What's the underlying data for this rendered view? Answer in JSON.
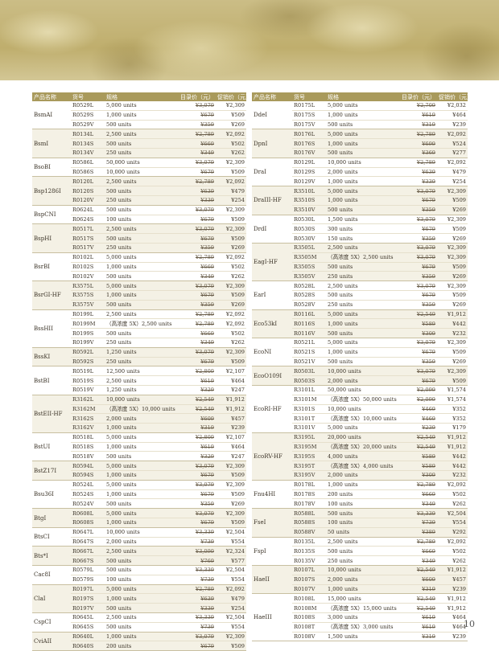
{
  "header": {
    "name": "产品名称",
    "code": "货号",
    "spec": "规格",
    "list_price": "目录价（元）",
    "promo_price": "促销价（元）"
  },
  "page_number": "10",
  "colors": {
    "header_bg": "#a99a5c",
    "alt_row_bg": "#f4f1e5",
    "banner": "#c2b273"
  },
  "left_groups": [
    {
      "name": "BsmAI",
      "rows": [
        [
          "R0529L",
          "5,000 units",
          "¥3,079",
          "¥2,309"
        ],
        [
          "R0529S",
          "1,000 units",
          "¥679",
          "¥509"
        ],
        [
          "R0529V",
          "500 units",
          "¥359",
          "¥269"
        ]
      ]
    },
    {
      "name": "BsmI",
      "rows": [
        [
          "R0134L",
          "2,500 units",
          "¥2,789",
          "¥2,092"
        ],
        [
          "R0134S",
          "500 units",
          "¥669",
          "¥502"
        ],
        [
          "R0134V",
          "250 units",
          "¥349",
          "¥262"
        ]
      ]
    },
    {
      "name": "BsoBI",
      "rows": [
        [
          "R0586L",
          "50,000 units",
          "¥3,079",
          "¥2,309"
        ],
        [
          "R0586S",
          "10,000 units",
          "¥679",
          "¥509"
        ]
      ]
    },
    {
      "name": "Bsp1286I",
      "rows": [
        [
          "R0120L",
          "2,500 units",
          "¥2,789",
          "¥2,092"
        ],
        [
          "R0120S",
          "500 units",
          "¥639",
          "¥479"
        ],
        [
          "R0120V",
          "250 units",
          "¥339",
          "¥254"
        ]
      ]
    },
    {
      "name": "BspCNI",
      "rows": [
        [
          "R0624L",
          "500 units",
          "¥3,079",
          "¥2,309"
        ],
        [
          "R0624S",
          "100 units",
          "¥679",
          "¥509"
        ]
      ]
    },
    {
      "name": "BspHI",
      "rows": [
        [
          "R0517L",
          "2,500 units",
          "¥3,079",
          "¥2,309"
        ],
        [
          "R0517S",
          "500 units",
          "¥679",
          "¥509"
        ],
        [
          "R0517V",
          "250 units",
          "¥359",
          "¥269"
        ]
      ]
    },
    {
      "name": "BsrBI",
      "rows": [
        [
          "R0102L",
          "5,000 units",
          "¥2,789",
          "¥2,092"
        ],
        [
          "R0102S",
          "1,000 units",
          "¥669",
          "¥502"
        ],
        [
          "R0102V",
          "500 units",
          "¥349",
          "¥262"
        ]
      ]
    },
    {
      "name": "BsrGI-HF",
      "rows": [
        [
          "R3575L",
          "5,000 units",
          "¥3,079",
          "¥2,309"
        ],
        [
          "R3575S",
          "1,000 units",
          "¥679",
          "¥509"
        ],
        [
          "R3575V",
          "500 units",
          "¥359",
          "¥269"
        ]
      ]
    },
    {
      "name": "BssHII",
      "rows": [
        [
          "R0199L",
          "2,500 units",
          "¥2,789",
          "¥2,092"
        ],
        [
          "R0199M",
          "（高浓度 5X）2,500 units",
          "¥2,789",
          "¥2,092"
        ],
        [
          "R0199S",
          "500 units",
          "¥669",
          "¥502"
        ],
        [
          "R0199V",
          "250 units",
          "¥349",
          "¥262"
        ]
      ]
    },
    {
      "name": "BssKI",
      "rows": [
        [
          "R0592L",
          "1,250 units",
          "¥3,079",
          "¥2,309"
        ],
        [
          "R0592S",
          "250 units",
          "¥679",
          "¥509"
        ]
      ]
    },
    {
      "name": "BstBI",
      "rows": [
        [
          "R0519L",
          "12,500 units",
          "¥2,809",
          "¥2,107"
        ],
        [
          "R0519S",
          "2,500 units",
          "¥619",
          "¥464"
        ],
        [
          "R0519V",
          "1,250 units",
          "¥329",
          "¥247"
        ]
      ]
    },
    {
      "name": "BstEII-HF",
      "rows": [
        [
          "R3162L",
          "10,000 units",
          "¥2,549",
          "¥1,912"
        ],
        [
          "R3162M",
          "（高浓度 5X）10,000 units",
          "¥2,549",
          "¥1,912"
        ],
        [
          "R3162S",
          "2,000 units",
          "¥609",
          "¥457"
        ],
        [
          "R3162V",
          "1,000 units",
          "¥319",
          "¥239"
        ]
      ]
    },
    {
      "name": "BstUI",
      "rows": [
        [
          "R0518L",
          "5,000 units",
          "¥2,809",
          "¥2,107"
        ],
        [
          "R0518S",
          "1,000 units",
          "¥619",
          "¥464"
        ],
        [
          "R0518V",
          "500 units",
          "¥329",
          "¥247"
        ]
      ]
    },
    {
      "name": "BstZ17I",
      "rows": [
        [
          "R0594L",
          "5,000 units",
          "¥3,079",
          "¥2,309"
        ],
        [
          "R0594S",
          "1,000 units",
          "¥679",
          "¥509"
        ]
      ]
    },
    {
      "name": "Bsu36I",
      "rows": [
        [
          "R0524L",
          "5,000 units",
          "¥3,079",
          "¥2,309"
        ],
        [
          "R0524S",
          "1,000 units",
          "¥679",
          "¥509"
        ],
        [
          "R0524V",
          "500 units",
          "¥359",
          "¥269"
        ]
      ]
    },
    {
      "name": "BtgI",
      "rows": [
        [
          "R0608L",
          "5,000 units",
          "¥3,079",
          "¥2,309"
        ],
        [
          "R0608S",
          "1,000 units",
          "¥679",
          "¥509"
        ]
      ]
    },
    {
      "name": "BtsCI",
      "rows": [
        [
          "R0647L",
          "10,000 units",
          "¥3,339",
          "¥2,504"
        ],
        [
          "R0647S",
          "2,000 units",
          "¥739",
          "¥554"
        ]
      ]
    },
    {
      "name": "Bts*I",
      "rows": [
        [
          "R0667L",
          "2,500 units",
          "¥3,099",
          "¥2,324"
        ],
        [
          "R0667S",
          "500 units",
          "¥769",
          "¥577"
        ]
      ]
    },
    {
      "name": "Cac8I",
      "rows": [
        [
          "R0579L",
          "500 units",
          "¥3,339",
          "¥2,504"
        ],
        [
          "R0579S",
          "100 units",
          "¥739",
          "¥554"
        ]
      ]
    },
    {
      "name": "ClaI",
      "rows": [
        [
          "R0197L",
          "5,000 units",
          "¥2,789",
          "¥2,092"
        ],
        [
          "R0197S",
          "1,000 units",
          "¥639",
          "¥479"
        ],
        [
          "R0197V",
          "500 units",
          "¥339",
          "¥254"
        ]
      ]
    },
    {
      "name": "CspCI",
      "rows": [
        [
          "R0645L",
          "2,500 units",
          "¥3,339",
          "¥2,504"
        ],
        [
          "R0645S",
          "500 units",
          "¥739",
          "¥554"
        ]
      ]
    },
    {
      "name": "CviAII",
      "rows": [
        [
          "R0640L",
          "1,000 units",
          "¥3,079",
          "¥2,309"
        ],
        [
          "R0640S",
          "200 units",
          "¥679",
          "¥509"
        ]
      ]
    }
  ],
  "right_groups": [
    {
      "name": "DdeI",
      "rows": [
        [
          "R0175L",
          "5,000 units",
          "¥2,709",
          "¥2,032"
        ],
        [
          "R0175S",
          "1,000 units",
          "¥619",
          "¥464"
        ],
        [
          "R0175V",
          "500 units",
          "¥319",
          "¥239"
        ]
      ]
    },
    {
      "name": "DpnI",
      "rows": [
        [
          "R0176L",
          "5,000 units",
          "¥2,789",
          "¥2,092"
        ],
        [
          "R0176S",
          "1,000 units",
          "¥699",
          "¥524"
        ],
        [
          "R0176V",
          "500 units",
          "¥369",
          "¥277"
        ]
      ]
    },
    {
      "name": "DraI",
      "rows": [
        [
          "R0129L",
          "10,000 units",
          "¥2,789",
          "¥2,092"
        ],
        [
          "R0129S",
          "2,000 units",
          "¥639",
          "¥479"
        ],
        [
          "R0129V",
          "1,000 units",
          "¥339",
          "¥254"
        ]
      ]
    },
    {
      "name": "DraIII-HF",
      "rows": [
        [
          "R3510L",
          "5,000 units",
          "¥3,079",
          "¥2,309"
        ],
        [
          "R3510S",
          "1,000 units",
          "¥679",
          "¥509"
        ],
        [
          "R3510V",
          "500 units",
          "¥359",
          "¥269"
        ]
      ]
    },
    {
      "name": "DrdI",
      "rows": [
        [
          "R0530L",
          "1,500 units",
          "¥3,079",
          "¥2,309"
        ],
        [
          "R0530S",
          "300 units",
          "¥679",
          "¥509"
        ],
        [
          "R0530V",
          "150 units",
          "¥359",
          "¥269"
        ]
      ]
    },
    {
      "name": "EagI-HF",
      "rows": [
        [
          "R3505L",
          "2,500 units",
          "¥3,079",
          "¥2,309"
        ],
        [
          "R3505M",
          "（高浓度 5X）2,500 units",
          "¥3,079",
          "¥2,309"
        ],
        [
          "R3505S",
          "500 units",
          "¥679",
          "¥509"
        ],
        [
          "R3505V",
          "250 units",
          "¥359",
          "¥269"
        ]
      ]
    },
    {
      "name": "EarI",
      "rows": [
        [
          "R0528L",
          "2,500 units",
          "¥3,079",
          "¥2,309"
        ],
        [
          "R0528S",
          "500 units",
          "¥679",
          "¥509"
        ],
        [
          "R0528V",
          "250 units",
          "¥359",
          "¥269"
        ]
      ]
    },
    {
      "name": "Eco53kI",
      "rows": [
        [
          "R0116L",
          "5,000 units",
          "¥2,549",
          "¥1,912"
        ],
        [
          "R0116S",
          "1,000 units",
          "¥589",
          "¥442"
        ],
        [
          "R0116V",
          "500 units",
          "¥309",
          "¥232"
        ]
      ]
    },
    {
      "name": "EcoNI",
      "rows": [
        [
          "R0521L",
          "5,000 units",
          "¥3,079",
          "¥2,309"
        ],
        [
          "R0521S",
          "1,000 units",
          "¥679",
          "¥509"
        ],
        [
          "R0521V",
          "500 units",
          "¥359",
          "¥269"
        ]
      ]
    },
    {
      "name": "EcoO109I",
      "rows": [
        [
          "R0503L",
          "10,000 units",
          "¥3,079",
          "¥2,309"
        ],
        [
          "R0503S",
          "2,000 units",
          "¥679",
          "¥509"
        ]
      ]
    },
    {
      "name": "EcoRI-HF",
      "rows": [
        [
          "R3101L",
          "50,000 units",
          "¥2,099",
          "¥1,574"
        ],
        [
          "R3101M",
          "（高浓度 5X）50,000 units",
          "¥2,099",
          "¥1,574"
        ],
        [
          "R3101S",
          "10,000 units",
          "¥469",
          "¥352"
        ],
        [
          "R3101T",
          "（高浓度 5X）10,000 units",
          "¥469",
          "¥352"
        ],
        [
          "R3101V",
          "5,000 units",
          "¥239",
          "¥179"
        ]
      ]
    },
    {
      "name": "EcoRV-HF",
      "rows": [
        [
          "R3195L",
          "20,000 units",
          "¥2,549",
          "¥1,912"
        ],
        [
          "R3195M",
          "（高浓度 5X）20,000 units",
          "¥2,549",
          "¥1,912"
        ],
        [
          "R3195S",
          "4,000 units",
          "¥589",
          "¥442"
        ],
        [
          "R3195T",
          "（高浓度 5X）4,000 units",
          "¥589",
          "¥442"
        ],
        [
          "R3195V",
          "2,000 units",
          "¥309",
          "¥232"
        ]
      ]
    },
    {
      "name": "Fnu4HI",
      "rows": [
        [
          "R0178L",
          "1,000 units",
          "¥2,789",
          "¥2,092"
        ],
        [
          "R0178S",
          "200 units",
          "¥669",
          "¥502"
        ],
        [
          "R0178V",
          "100 units",
          "¥349",
          "¥262"
        ]
      ]
    },
    {
      "name": "FseI",
      "rows": [
        [
          "R0588L",
          "500 units",
          "¥3,339",
          "¥2,504"
        ],
        [
          "R0588S",
          "100 units",
          "¥739",
          "¥554"
        ],
        [
          "R0588V",
          "50 units",
          "¥389",
          "¥292"
        ]
      ]
    },
    {
      "name": "FspI",
      "rows": [
        [
          "R0135L",
          "2,500 units",
          "¥2,789",
          "¥2,092"
        ],
        [
          "R0135S",
          "500 units",
          "¥669",
          "¥502"
        ],
        [
          "R0135V",
          "250 units",
          "¥349",
          "¥262"
        ]
      ]
    },
    {
      "name": "HaeII",
      "rows": [
        [
          "R0107L",
          "10,000 units",
          "¥2,549",
          "¥1,912"
        ],
        [
          "R0107S",
          "2,000 units",
          "¥609",
          "¥457"
        ],
        [
          "R0107V",
          "1,000 units",
          "¥319",
          "¥239"
        ]
      ]
    },
    {
      "name": "HaeIII",
      "rows": [
        [
          "R0108L",
          "15,000 units",
          "¥2,549",
          "¥1,912"
        ],
        [
          "R0108M",
          "（高浓度 5X）15,000 units",
          "¥2,549",
          "¥1,912"
        ],
        [
          "R0108S",
          "3,000 units",
          "¥619",
          "¥464"
        ],
        [
          "R0108T",
          "（高浓度 5X）3,000 units",
          "¥619",
          "¥464"
        ],
        [
          "R0108V",
          "1,500 units",
          "¥319",
          "¥239"
        ]
      ]
    }
  ]
}
